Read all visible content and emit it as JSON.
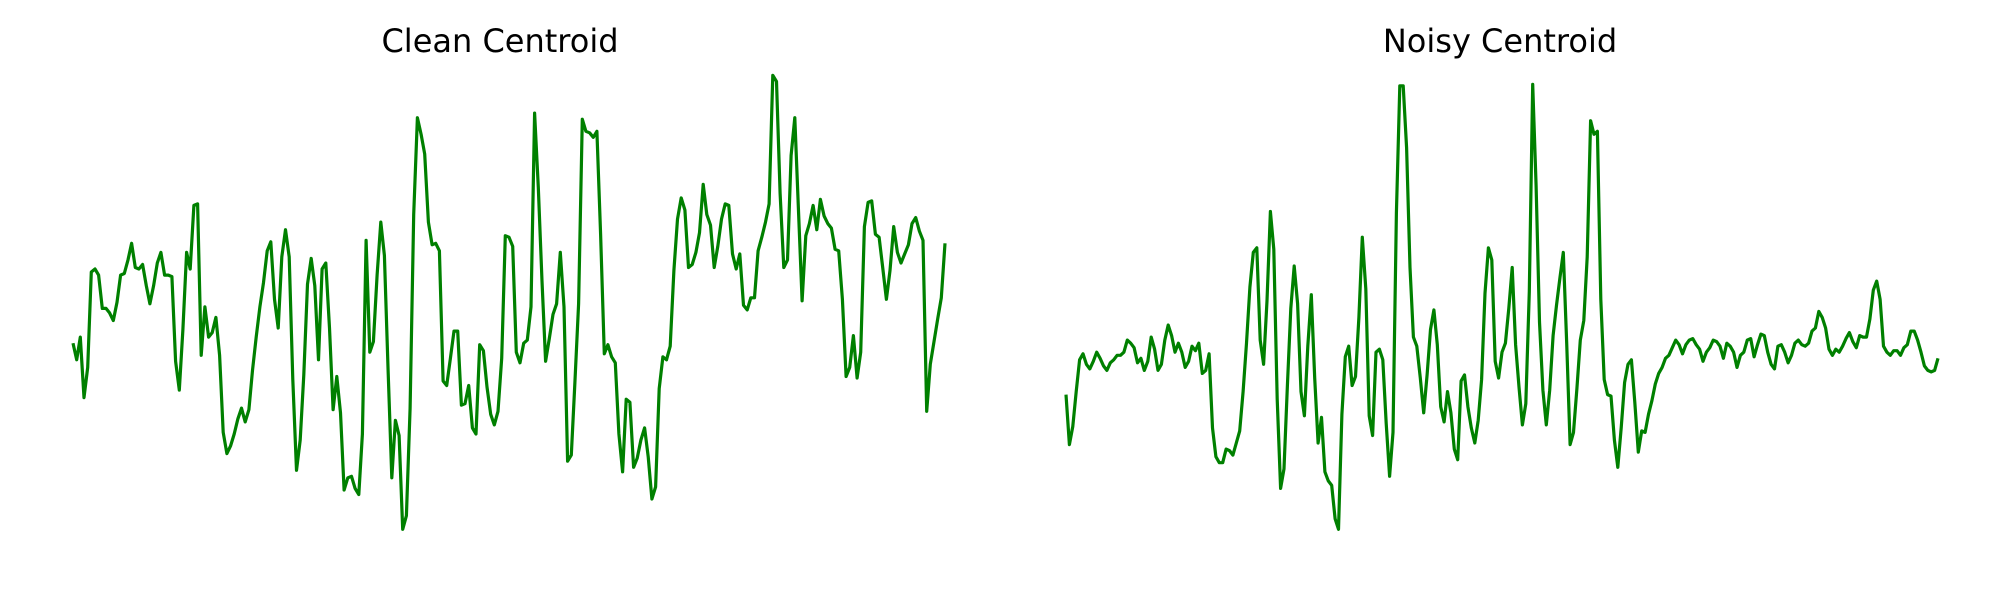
{
  "chart_data": [
    {
      "type": "line",
      "title": "Clean Centroid",
      "color": "#008000",
      "axes_visible": false,
      "grid": false,
      "ylim": [
        -1.5,
        1.5
      ],
      "series": [
        {
          "values": [
            -0.12,
            -0.23,
            -0.08,
            -0.48,
            -0.28,
            0.35,
            0.37,
            0.33,
            0.11,
            0.11,
            0.08,
            0.03,
            0.15,
            0.33,
            0.34,
            0.43,
            0.54,
            0.38,
            0.37,
            0.4,
            0.26,
            0.14,
            0.26,
            0.41,
            0.48,
            0.33,
            0.33,
            0.32,
            -0.24,
            -0.43,
            -0.03,
            0.48,
            0.37,
            0.79,
            0.8,
            -0.2,
            0.12,
            -0.08,
            -0.05,
            0.05,
            -0.2,
            -0.71,
            -0.85,
            -0.8,
            -0.72,
            -0.62,
            -0.55,
            -0.64,
            -0.56,
            -0.3,
            -0.08,
            0.12,
            0.28,
            0.49,
            0.55,
            0.17,
            -0.02,
            0.45,
            0.63,
            0.45,
            -0.36,
            -0.96,
            -0.76,
            -0.33,
            0.27,
            0.44,
            0.26,
            -0.23,
            0.37,
            0.41,
            -0.02,
            -0.56,
            -0.34,
            -0.58,
            -1.09,
            -1.01,
            -1.0,
            -1.08,
            -1.12,
            -0.72,
            0.56,
            -0.18,
            -0.11,
            0.33,
            0.68,
            0.46,
            -0.3,
            -1.01,
            -0.63,
            -0.73,
            -1.35,
            -1.26,
            -0.55,
            0.73,
            1.37,
            1.26,
            1.13,
            0.68,
            0.53,
            0.54,
            0.49,
            -0.37,
            -0.4,
            -0.22,
            -0.04,
            -0.04,
            -0.53,
            -0.52,
            -0.4,
            -0.68,
            -0.72,
            -0.13,
            -0.17,
            -0.41,
            -0.59,
            -0.66,
            -0.57,
            -0.22,
            0.59,
            0.58,
            0.52,
            -0.18,
            -0.25,
            -0.12,
            -0.1,
            0.12,
            1.4,
            0.91,
            0.29,
            -0.24,
            -0.09,
            0.07,
            0.14,
            0.48,
            0.12,
            -0.9,
            -0.86,
            -0.38,
            0.14,
            1.36,
            1.28,
            1.27,
            1.24,
            1.28,
            0.6,
            -0.19,
            -0.13,
            -0.21,
            -0.25,
            -0.72,
            -0.97,
            -0.49,
            -0.51,
            -0.94,
            -0.88,
            -0.76,
            -0.68,
            -0.87,
            -1.15,
            -1.07,
            -0.42,
            -0.21,
            -0.23,
            -0.14,
            0.36,
            0.7,
            0.84,
            0.76,
            0.38,
            0.4,
            0.48,
            0.61,
            0.93,
            0.73,
            0.66,
            0.38,
            0.52,
            0.7,
            0.8,
            0.79,
            0.47,
            0.37,
            0.47,
            0.13,
            0.1,
            0.18,
            0.18,
            0.49,
            0.58,
            0.68,
            0.8,
            1.65,
            1.61,
            0.87,
            0.38,
            0.43,
            1.12,
            1.37,
            0.77,
            0.16,
            0.59,
            0.67,
            0.79,
            0.63,
            0.83,
            0.72,
            0.67,
            0.64,
            0.5,
            0.49,
            0.17,
            -0.34,
            -0.28,
            -0.07,
            -0.35,
            -0.18,
            0.65,
            0.81,
            0.82,
            0.6,
            0.58,
            0.38,
            0.17,
            0.36,
            0.65,
            0.48,
            0.41,
            0.47,
            0.53,
            0.67,
            0.71,
            0.62,
            0.56,
            -0.57,
            -0.26,
            -0.11,
            0.04,
            0.18,
            0.54
          ]
        }
      ]
    },
    {
      "type": "line",
      "title": "Noisy Centroid",
      "color": "#008000",
      "axes_visible": false,
      "grid": false,
      "ylim": [
        -1.5,
        1.5
      ],
      "series": [
        {
          "values": [
            -0.46,
            -0.79,
            -0.67,
            -0.44,
            -0.23,
            -0.19,
            -0.26,
            -0.29,
            -0.24,
            -0.18,
            -0.22,
            -0.27,
            -0.3,
            -0.25,
            -0.23,
            -0.2,
            -0.2,
            -0.18,
            -0.1,
            -0.12,
            -0.15,
            -0.25,
            -0.22,
            -0.3,
            -0.24,
            -0.08,
            -0.16,
            -0.3,
            -0.26,
            -0.1,
            0.0,
            -0.07,
            -0.18,
            -0.12,
            -0.18,
            -0.28,
            -0.24,
            -0.14,
            -0.17,
            -0.12,
            -0.32,
            -0.3,
            -0.19,
            -0.68,
            -0.87,
            -0.91,
            -0.91,
            -0.82,
            -0.83,
            -0.86,
            -0.78,
            -0.7,
            -0.44,
            -0.12,
            0.25,
            0.48,
            0.51,
            -0.1,
            -0.26,
            0.16,
            0.75,
            0.5,
            -0.49,
            -1.08,
            -0.95,
            -0.4,
            0.11,
            0.39,
            0.14,
            -0.44,
            -0.6,
            -0.14,
            0.2,
            -0.35,
            -0.78,
            -0.61,
            -0.97,
            -1.03,
            -1.06,
            -1.28,
            -1.35,
            -0.59,
            -0.21,
            -0.14,
            -0.4,
            -0.34,
            0.05,
            0.58,
            0.24,
            -0.6,
            -0.73,
            -0.18,
            -0.16,
            -0.23,
            -0.65,
            -1.0,
            -0.71,
            0.74,
            1.58,
            1.58,
            1.17,
            0.38,
            -0.08,
            -0.14,
            -0.35,
            -0.58,
            -0.33,
            -0.03,
            0.1,
            -0.13,
            -0.54,
            -0.64,
            -0.44,
            -0.58,
            -0.82,
            -0.89,
            -0.37,
            -0.33,
            -0.54,
            -0.68,
            -0.78,
            -0.63,
            -0.36,
            0.21,
            0.51,
            0.43,
            -0.24,
            -0.35,
            -0.18,
            -0.12,
            0.11,
            0.38,
            -0.13,
            -0.41,
            -0.66,
            -0.52,
            0.22,
            1.59,
            0.92,
            0.02,
            -0.43,
            -0.66,
            -0.43,
            -0.07,
            0.13,
            0.31,
            0.48,
            -0.12,
            -0.79,
            -0.71,
            -0.42,
            -0.1,
            0.03,
            0.45,
            1.35,
            1.26,
            1.28,
            0.17,
            -0.36,
            -0.46,
            -0.47,
            -0.76,
            -0.94,
            -0.68,
            -0.38,
            -0.26,
            -0.23,
            -0.51,
            -0.84,
            -0.7,
            -0.71,
            -0.59,
            -0.5,
            -0.39,
            -0.32,
            -0.28,
            -0.22,
            -0.2,
            -0.15,
            -0.1,
            -0.13,
            -0.19,
            -0.13,
            -0.1,
            -0.09,
            -0.13,
            -0.16,
            -0.24,
            -0.18,
            -0.15,
            -0.1,
            -0.11,
            -0.14,
            -0.22,
            -0.12,
            -0.14,
            -0.18,
            -0.28,
            -0.2,
            -0.18,
            -0.1,
            -0.09,
            -0.21,
            -0.13,
            -0.06,
            -0.07,
            -0.18,
            -0.26,
            -0.29,
            -0.14,
            -0.13,
            -0.18,
            -0.25,
            -0.2,
            -0.12,
            -0.1,
            -0.13,
            -0.14,
            -0.12,
            -0.04,
            -0.02,
            0.09,
            0.05,
            -0.02,
            -0.16,
            -0.2,
            -0.16,
            -0.18,
            -0.14,
            -0.09,
            -0.05,
            -0.11,
            -0.15,
            -0.07,
            -0.08,
            -0.08,
            0.04,
            0.23,
            0.29,
            0.17,
            -0.14,
            -0.18,
            -0.2,
            -0.17,
            -0.17,
            -0.2,
            -0.15,
            -0.13,
            -0.04,
            -0.04,
            -0.1,
            -0.18,
            -0.27,
            -0.3,
            -0.31,
            -0.3,
            -0.22
          ]
        }
      ]
    }
  ]
}
